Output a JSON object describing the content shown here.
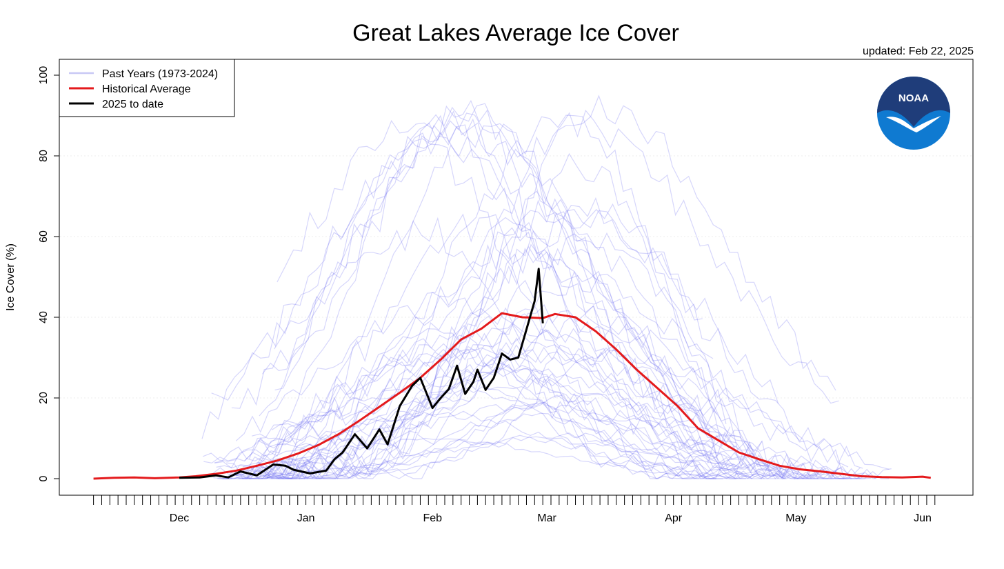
{
  "title": "Great Lakes Average Ice Cover",
  "updated": "updated: Feb 22, 2025",
  "logo_text": "NOAA",
  "colors": {
    "past": "#6b6bf0",
    "average": "#e41a1c",
    "current": "#000000",
    "noaa_dark": "#1f3d7a",
    "noaa_light": "#0f7ad1"
  },
  "chart_data": {
    "type": "line",
    "title": "Great Lakes Average Ice Cover",
    "ylabel": "Ice Cover (%)",
    "xlabel": "",
    "ylim": [
      0,
      100
    ],
    "yticks": [
      0,
      20,
      40,
      60,
      80,
      100
    ],
    "xlim": [
      "2024-11-10",
      "2025-06-05"
    ],
    "month_ticks": [
      {
        "label": "Dec",
        "date": "2024-12-01"
      },
      {
        "label": "Jan",
        "date": "2025-01-01"
      },
      {
        "label": "Feb",
        "date": "2025-02-01"
      },
      {
        "label": "Mar",
        "date": "2025-03-01"
      },
      {
        "label": "Apr",
        "date": "2025-04-01"
      },
      {
        "label": "May",
        "date": "2025-05-01"
      },
      {
        "label": "Jun",
        "date": "2025-06-01"
      }
    ],
    "legend": {
      "position": "top-left",
      "entries": [
        {
          "label": "Past Years (1973-2024)",
          "color": "#c8c8f5"
        },
        {
          "label": "Historical Average",
          "color": "#e41a1c"
        },
        {
          "label": "2025 to date",
          "color": "#000000"
        }
      ]
    },
    "series": [
      {
        "name": "Historical Average",
        "points": [
          [
            "2024-11-10",
            0.0
          ],
          [
            "2024-11-15",
            0.2
          ],
          [
            "2024-11-20",
            0.3
          ],
          [
            "2024-11-25",
            0.1
          ],
          [
            "2024-12-01",
            0.3
          ],
          [
            "2024-12-05",
            0.6
          ],
          [
            "2024-12-10",
            1.2
          ],
          [
            "2024-12-15",
            2.0
          ],
          [
            "2024-12-20",
            3.2
          ],
          [
            "2024-12-25",
            4.5
          ],
          [
            "2024-12-30",
            6.2
          ],
          [
            "2025-01-04",
            8.3
          ],
          [
            "2025-01-09",
            11.0
          ],
          [
            "2025-01-14",
            14.3
          ],
          [
            "2025-01-19",
            17.8
          ],
          [
            "2025-01-24",
            21.3
          ],
          [
            "2025-01-29",
            25.0
          ],
          [
            "2025-02-03",
            29.5
          ],
          [
            "2025-02-08",
            34.5
          ],
          [
            "2025-02-13",
            37.2
          ],
          [
            "2025-02-18",
            41.0
          ],
          [
            "2025-02-23",
            40.0
          ],
          [
            "2025-02-28",
            39.8
          ],
          [
            "2025-03-03",
            40.8
          ],
          [
            "2025-03-08",
            40.0
          ],
          [
            "2025-03-13",
            36.5
          ],
          [
            "2025-03-18",
            32.0
          ],
          [
            "2025-03-23",
            27.0
          ],
          [
            "2025-03-28",
            22.5
          ],
          [
            "2025-04-02",
            18.0
          ],
          [
            "2025-04-07",
            12.5
          ],
          [
            "2025-04-12",
            9.5
          ],
          [
            "2025-04-17",
            6.5
          ],
          [
            "2025-04-22",
            4.8
          ],
          [
            "2025-04-27",
            3.2
          ],
          [
            "2025-05-02",
            2.3
          ],
          [
            "2025-05-07",
            1.8
          ],
          [
            "2025-05-12",
            1.2
          ],
          [
            "2025-05-17",
            0.6
          ],
          [
            "2025-05-22",
            0.4
          ],
          [
            "2025-05-27",
            0.3
          ],
          [
            "2025-06-01",
            0.5
          ],
          [
            "2025-06-03",
            0.2
          ]
        ]
      },
      {
        "name": "2025 to date",
        "points": [
          [
            "2024-12-01",
            0.2
          ],
          [
            "2024-12-06",
            0.3
          ],
          [
            "2024-12-10",
            0.8
          ],
          [
            "2024-12-13",
            0.3
          ],
          [
            "2024-12-16",
            1.8
          ],
          [
            "2024-12-20",
            0.8
          ],
          [
            "2024-12-24",
            3.5
          ],
          [
            "2024-12-27",
            3.2
          ],
          [
            "2024-12-29",
            2.2
          ],
          [
            "2025-01-02",
            1.3
          ],
          [
            "2025-01-06",
            2.0
          ],
          [
            "2025-01-08",
            4.8
          ],
          [
            "2025-01-10",
            6.5
          ],
          [
            "2025-01-13",
            11.0
          ],
          [
            "2025-01-16",
            7.5
          ],
          [
            "2025-01-19",
            12.2
          ],
          [
            "2025-01-21",
            8.5
          ],
          [
            "2025-01-24",
            18.0
          ],
          [
            "2025-01-27",
            23.0
          ],
          [
            "2025-01-29",
            25.0
          ],
          [
            "2025-02-01",
            17.5
          ],
          [
            "2025-02-03",
            20.0
          ],
          [
            "2025-02-05",
            22.2
          ],
          [
            "2025-02-07",
            28.0
          ],
          [
            "2025-02-09",
            21.0
          ],
          [
            "2025-02-11",
            24.0
          ],
          [
            "2025-02-12",
            27.0
          ],
          [
            "2025-02-14",
            22.0
          ],
          [
            "2025-02-16",
            25.0
          ],
          [
            "2025-02-18",
            31.0
          ],
          [
            "2025-02-20",
            29.5
          ],
          [
            "2025-02-22",
            30.0
          ],
          [
            "2025-02-24",
            37.0
          ],
          [
            "2025-02-26",
            44.0
          ],
          [
            "2025-02-27",
            52.0
          ],
          [
            "2025-02-28",
            38.5
          ]
        ]
      }
    ],
    "past_years_note": "Past Years (1973-2024)"
  }
}
